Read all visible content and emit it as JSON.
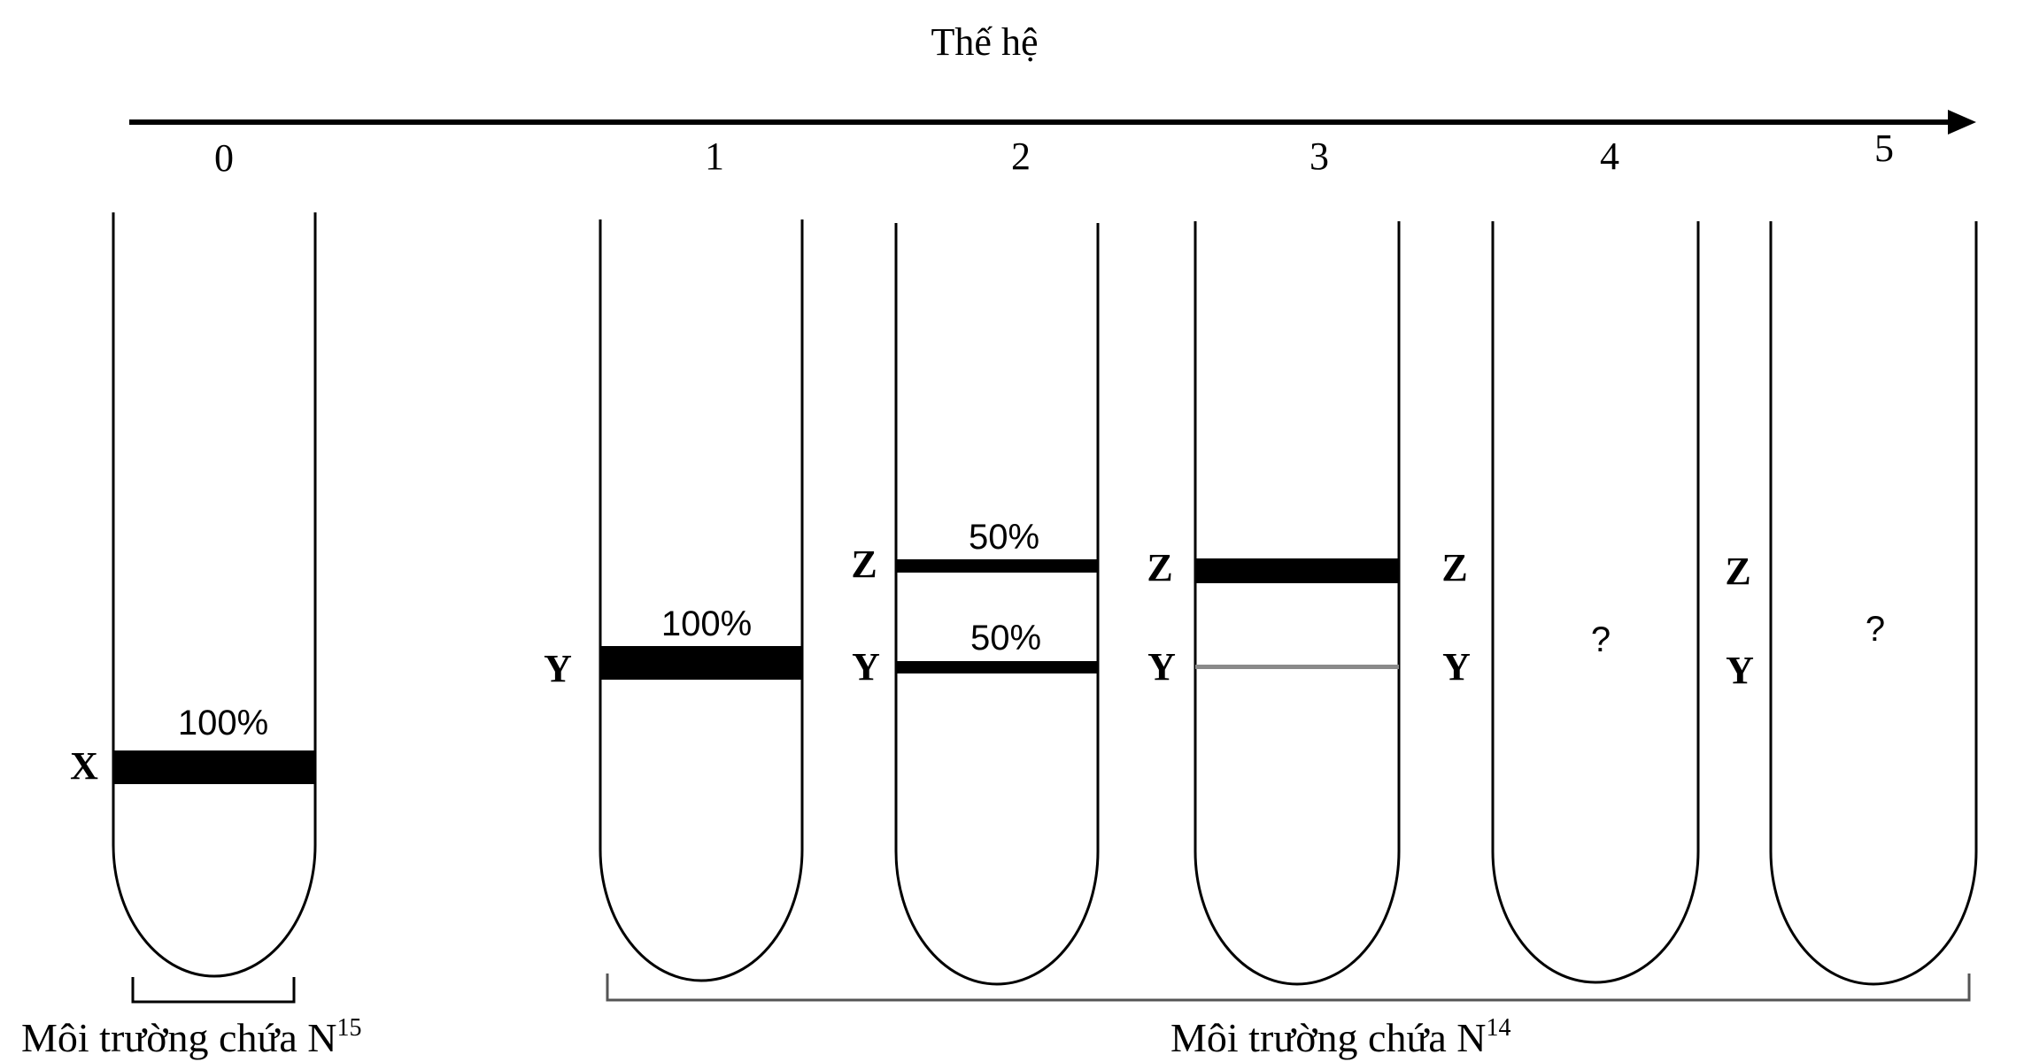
{
  "title": "Thế hệ",
  "generations": [
    {
      "label": "0",
      "bands": [
        {
          "letter": "X",
          "percent": "100%"
        }
      ],
      "unknown": null
    },
    {
      "label": "1",
      "bands": [
        {
          "letter": "Y",
          "percent": "100%"
        }
      ],
      "unknown": null
    },
    {
      "label": "2",
      "bands": [
        {
          "letter": "Z",
          "percent": "50%"
        },
        {
          "letter": "Y",
          "percent": "50%"
        }
      ],
      "unknown": null
    },
    {
      "label": "3",
      "bands": [
        {
          "letter": "Z",
          "percent": ""
        },
        {
          "letter": "Y",
          "percent": ""
        }
      ],
      "unknown": null
    },
    {
      "label": "4",
      "bands": [
        {
          "letter": "Z",
          "percent": ""
        },
        {
          "letter": "Y",
          "percent": ""
        }
      ],
      "unknown": "?"
    },
    {
      "label": "5",
      "bands": [
        {
          "letter": "Z",
          "percent": ""
        },
        {
          "letter": "Y",
          "percent": ""
        }
      ],
      "unknown": "?"
    }
  ],
  "medium_n15": {
    "text": "Môi trường chứa N",
    "sup": "15"
  },
  "medium_n14": {
    "text": "Môi trường chứa N",
    "sup": "14"
  },
  "colors": {
    "ink": "#000000",
    "thin_band": "#8a8a8a"
  }
}
